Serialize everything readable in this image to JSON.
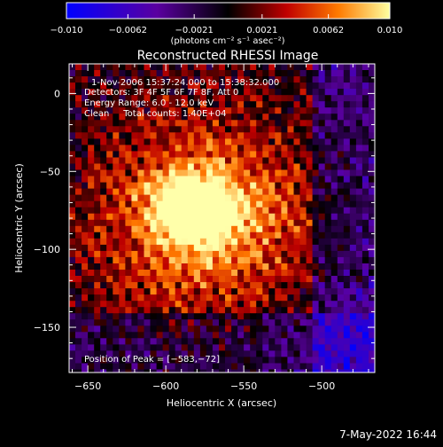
{
  "chart_data": {
    "type": "heatmap",
    "title": "Reconstructed RHESSI Image",
    "xlabel": "Heliocentric X (arcsec)",
    "ylabel": "Heliocentric Y (arcsec)",
    "xlim": [
      -662,
      -466
    ],
    "ylim": [
      -179,
      19
    ],
    "x_ticks": [
      -650,
      -600,
      -550,
      -500
    ],
    "y_ticks": [
      0,
      -50,
      -100,
      -150
    ],
    "x_tick_labels": [
      "−650",
      "−600",
      "−550",
      "−500"
    ],
    "y_tick_labels": [
      "0",
      "−50",
      "−100",
      "−150"
    ],
    "colorbar": {
      "range": [
        -0.01,
        0.01
      ],
      "ticks": [
        -0.01,
        -0.0062,
        -0.0021,
        0.0021,
        0.0062,
        0.01
      ],
      "tick_labels": [
        "−0.010",
        "−0.0062",
        "−0.0021",
        "0.0021",
        "0.0062",
        "0.010"
      ],
      "unit_label": "(photons cm⁻² s⁻¹ asec⁻²)"
    },
    "peak": {
      "x": -583,
      "y": -72
    },
    "annotations": [
      "1-Nov-2006 15:37:24.000 to 15:38:32.000",
      "Detectors: 3F 4F 5F 6F 7F 8F, Att 0",
      "Energy Range: 6.0 - 12.0 keV",
      "Clean     Total counts: 1.40E+04"
    ],
    "peak_label": "Position of Peak = [−583,−72]"
  },
  "footer": {
    "timestamp": "7-May-2022 16:44"
  },
  "colors": {
    "background": "#000000",
    "foreground": "#ffffff"
  }
}
